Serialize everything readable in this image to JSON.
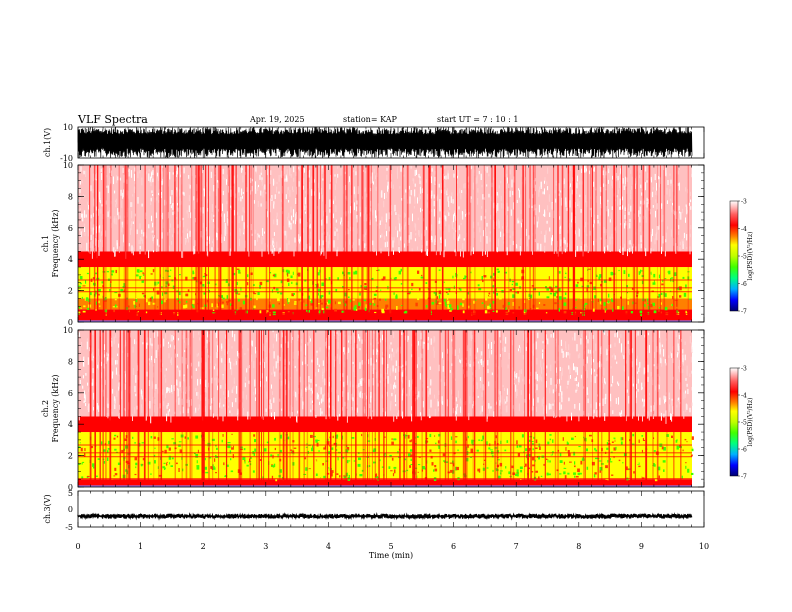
{
  "header": {
    "title": "VLF Spectra",
    "date": "Apr. 19, 2025",
    "station": "station= KAP",
    "start_ut": "start  UT =   7 : 10 : 1"
  },
  "panels": {
    "ch1_waveform": {
      "ylabel": "ch.1(V)",
      "yticks": [
        "10",
        "-10"
      ]
    },
    "ch1_spectrogram": {
      "ylabel": "ch.1\nFrequency  (kHz)",
      "ylabel_line1": "ch.1",
      "ylabel_line2": "Frequency  (kHz)",
      "yticks": [
        "0",
        "2",
        "4",
        "6",
        "8",
        "10"
      ]
    },
    "ch2_spectrogram": {
      "ylabel_line1": "ch.2",
      "ylabel_line2": "Frequency  (kHz)",
      "yticks": [
        "0",
        "2",
        "4",
        "6",
        "8",
        "10"
      ]
    },
    "ch3_waveform": {
      "ylabel": "ch.3(V)",
      "yticks": [
        "5",
        "0",
        "-5"
      ]
    }
  },
  "colorbar": {
    "label": "log(PSD)(V²/Hz)",
    "ticks": [
      "-3",
      "-4",
      "-5",
      "-6",
      "-7"
    ],
    "colors": [
      "#000070",
      "#0000ff",
      "#00b0ff",
      "#00ff80",
      "#40ff00",
      "#c0ff00",
      "#ffff00",
      "#ff8000",
      "#ff0000",
      "#ff6060",
      "#ffc0c0",
      "#ffffff"
    ]
  },
  "xaxis": {
    "label": "Time  (min)",
    "ticks": [
      "0",
      "1",
      "2",
      "3",
      "4",
      "5",
      "6",
      "7",
      "8",
      "9",
      "10"
    ]
  },
  "chart_data": [
    {
      "type": "line",
      "name": "ch.1(V)",
      "x_range_min": [
        0,
        9.85
      ],
      "ylim": [
        -10,
        10
      ],
      "description_values": {
        "min": -10,
        "max": 10
      }
    },
    {
      "type": "heatmap",
      "name": "ch.1",
      "xlim": [
        0,
        10
      ],
      "ylim_khz": [
        0,
        10
      ],
      "colorbar_range": [
        -7,
        -3
      ],
      "bands_khz": [
        {
          "from": 0,
          "to": 0.8,
          "level": -4
        },
        {
          "from": 0.8,
          "to": 1.5,
          "level": -4.5
        },
        {
          "from": 1.5,
          "to": 3.5,
          "level": -5
        },
        {
          "from": 3.5,
          "to": 4.5,
          "level": -4
        },
        {
          "from": 4.5,
          "to": 10,
          "level": -3.5
        }
      ]
    },
    {
      "type": "heatmap",
      "name": "ch.2",
      "xlim": [
        0,
        10
      ],
      "ylim_khz": [
        0,
        10
      ],
      "colorbar_range": [
        -7,
        -3
      ],
      "bands_khz": [
        {
          "from": 0,
          "to": 0.5,
          "level": -4
        },
        {
          "from": 0.5,
          "to": 3.5,
          "level": -5
        },
        {
          "from": 3.5,
          "to": 4.5,
          "level": -4
        },
        {
          "from": 4.5,
          "to": 10,
          "level": -3.5
        }
      ]
    },
    {
      "type": "line",
      "name": "ch.3(V)",
      "x_range_min": [
        0,
        9.85
      ],
      "ylim": [
        -5,
        5
      ],
      "description_values": {
        "approx_level": -2
      }
    }
  ]
}
